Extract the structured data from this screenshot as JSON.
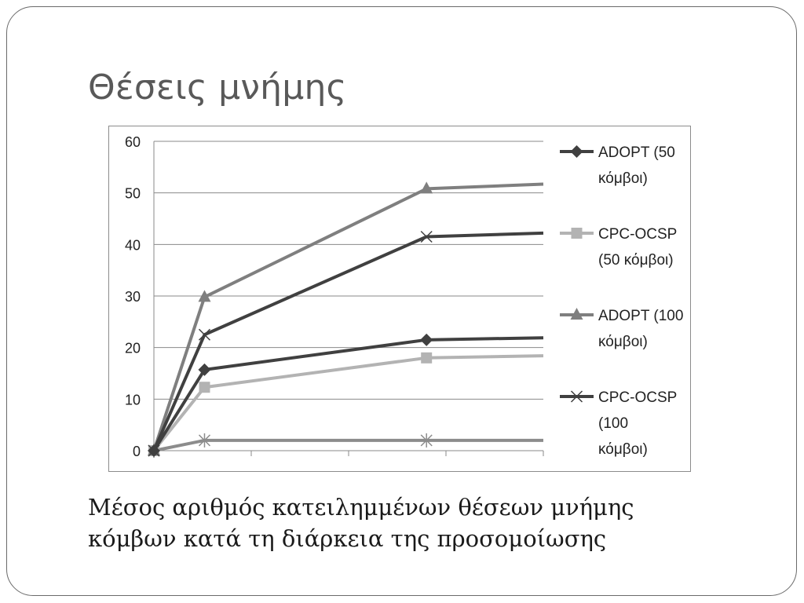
{
  "slide": {
    "title": "Θέσεις μνήμης",
    "caption_line1": "Μέσος αριθμός κατειλημμένων θέσεων μνήμης",
    "caption_line2": "κόμβων κατά τη διάρκεια της προσομοίωσης"
  },
  "chart_data": {
    "type": "line",
    "title": "",
    "xlabel": "",
    "ylabel": "",
    "ylim": [
      0,
      60
    ],
    "yticks": [
      "0",
      "10",
      "20",
      "30",
      "40",
      "50",
      "60"
    ],
    "x": [
      0,
      0.13,
      0.7,
      1.0
    ],
    "grid": "horizontal",
    "legend_position": "right",
    "series": [
      {
        "name_lines": [
          "ADOPT (50",
          "κόμβοι)"
        ],
        "color": "#404040",
        "marker": "diamond",
        "values": [
          0,
          15.7,
          21.5,
          21.9
        ]
      },
      {
        "name_lines": [
          "CPC-OCSP",
          "(50 κόμβοι)"
        ],
        "color": "#b3b3b3",
        "marker": "square",
        "values": [
          0,
          12.3,
          18,
          18.4
        ]
      },
      {
        "name_lines": [
          "ADOPT (100",
          "κόμβοι)"
        ],
        "color": "#7f7f7f",
        "marker": "triangle",
        "values": [
          0,
          29.8,
          50.8,
          51.7
        ]
      },
      {
        "name_lines": [
          "CPC-OCSP",
          "(100",
          "κόμβοι)"
        ],
        "color": "#404040",
        "marker": "x",
        "values": [
          0,
          22.5,
          41.5,
          42.2
        ]
      },
      {
        "name_lines": [],
        "color": "#8c8c8c",
        "marker": "star",
        "values": [
          0,
          2,
          2,
          2
        ]
      }
    ]
  }
}
